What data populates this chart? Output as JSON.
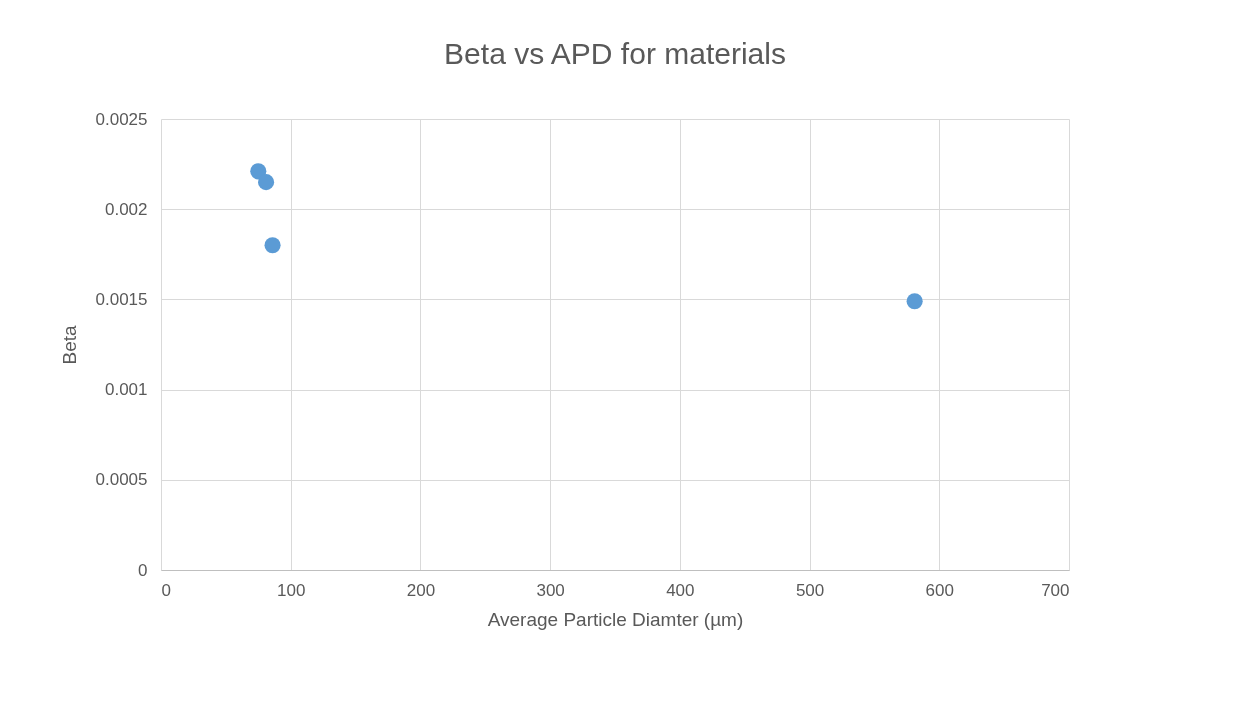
{
  "chart_data": {
    "type": "scatter",
    "title": "Beta vs APD for materials",
    "xlabel": "Average Particle Diamter (µm)",
    "ylabel": "Beta",
    "x": [
      75,
      81,
      86,
      581
    ],
    "series": [
      {
        "color": "#5b9bd5",
        "values": [
          0.00221,
          0.00215,
          0.0018,
          0.00149
        ]
      }
    ],
    "xlim": [
      0,
      700
    ],
    "xticks": [
      0,
      100,
      200,
      300,
      400,
      500,
      600,
      700
    ],
    "ylim": [
      0,
      0.0025
    ],
    "yticks": [
      0,
      0.0005,
      0.001,
      0.0015,
      0.002,
      0.0025
    ],
    "grid": true,
    "legend": false,
    "marker": "circle"
  }
}
